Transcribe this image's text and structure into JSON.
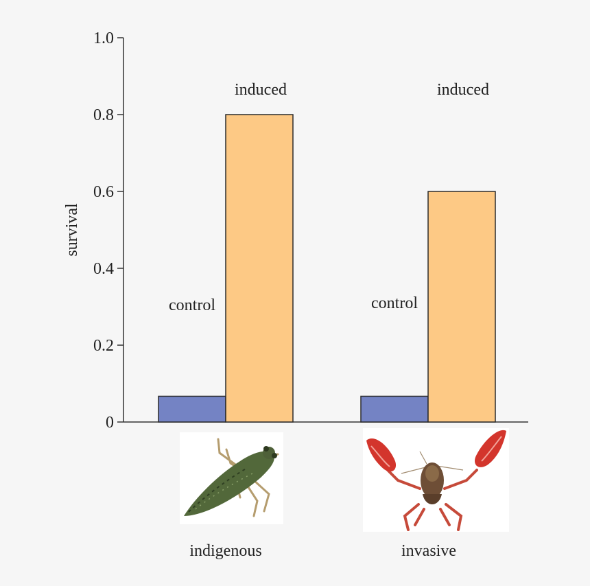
{
  "chart_data": {
    "type": "bar",
    "ylabel": "survival",
    "xlabel": "",
    "title": "",
    "ylim": [
      0,
      1.0
    ],
    "yticks": [
      0,
      0.2,
      0.4,
      0.6,
      0.8,
      1.0
    ],
    "ytick_labels": [
      "0",
      "0.2",
      "0.4",
      "0.6",
      "0.8",
      "1.0"
    ],
    "categories": [
      "indigenous",
      "invasive"
    ],
    "series": [
      {
        "name": "control",
        "values": [
          0.067,
          0.067
        ],
        "color": "#7483c4"
      },
      {
        "name": "induced",
        "values": [
          0.8,
          0.6
        ],
        "color": "#fdc985"
      }
    ],
    "grid": false,
    "legend": "none"
  },
  "images": [
    {
      "name": "dragonfly-larva-image",
      "depicts": "dragonfly larva"
    },
    {
      "name": "crayfish-image",
      "depicts": "red crayfish"
    }
  ]
}
